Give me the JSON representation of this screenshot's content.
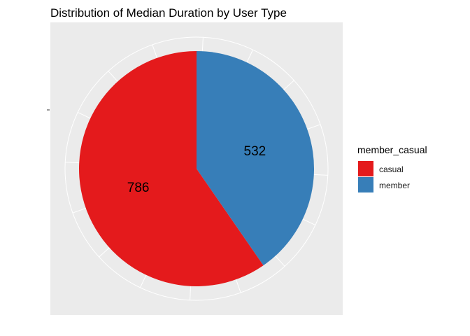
{
  "chart_data": {
    "type": "pie",
    "title": "Distribution of Median Duration by User Type",
    "categories": [
      "casual",
      "member"
    ],
    "values": [
      786,
      532
    ],
    "value_labels": [
      "786",
      "532"
    ],
    "colors": [
      "#e41a1c",
      "#377eb8"
    ],
    "legend": {
      "title": "member_casual",
      "position": "right",
      "entries": [
        "casual",
        "member"
      ]
    },
    "grid": true,
    "panel_background": "#ebebeb",
    "grid_color": "#ffffff"
  }
}
